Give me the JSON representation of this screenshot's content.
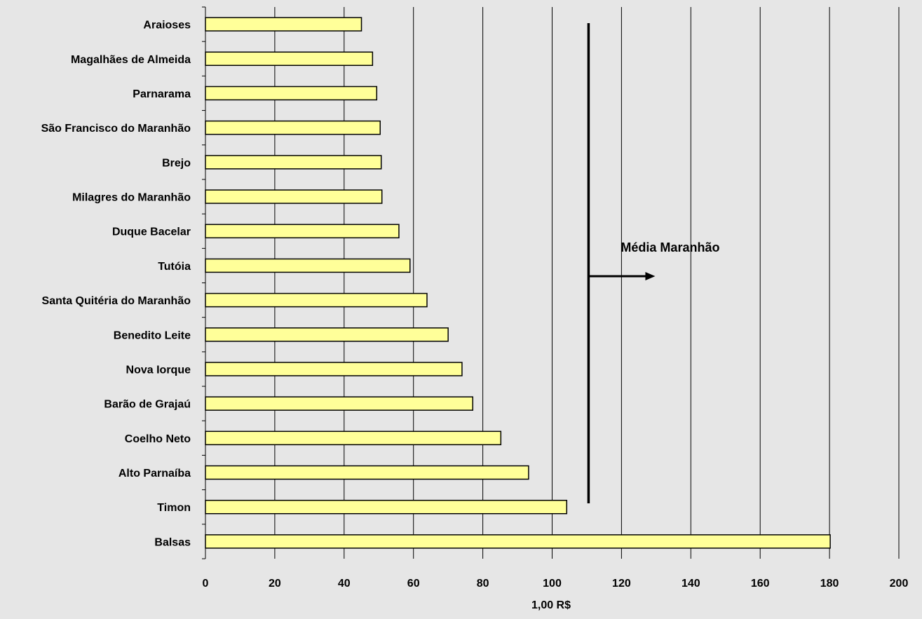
{
  "chart_data": {
    "type": "bar",
    "orientation": "horizontal",
    "categories": [
      "Araioses",
      "Magalhães de Almeida",
      "Parnarama",
      "São Francisco do Maranhão",
      "Brejo",
      "Milagres do Maranhão",
      "Duque Bacelar",
      "Tutóia",
      "Santa Quitéria do Maranhão",
      "Benedito Leite",
      "Nova Iorque",
      "Barão de Grajaú",
      "Coelho Neto",
      "Alto Parnaíba",
      "Timon",
      "Balsas"
    ],
    "values": [
      45,
      48.2,
      49.4,
      50.4,
      50.7,
      50.9,
      55.8,
      59,
      63.9,
      70,
      74,
      77.1,
      85.2,
      93.2,
      104.2,
      180.2
    ],
    "xlabel": "1,00 R$",
    "ylabel": "",
    "xlim": [
      0,
      200
    ],
    "x_ticks": [
      0,
      20,
      40,
      60,
      80,
      100,
      120,
      140,
      160,
      180,
      200
    ],
    "grid": "vertical",
    "bar_color": "#ffff99",
    "bar_border_color": "#000000",
    "background_color": "#e6e6e6",
    "annotation": {
      "label": "Média Maranhão",
      "value": 110.5
    }
  }
}
